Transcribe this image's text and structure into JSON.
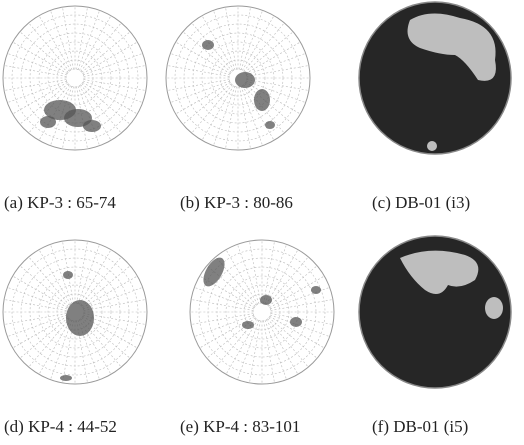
{
  "panels": [
    {
      "caption": "(a) KP-3 : 65-74"
    },
    {
      "caption": "(b) KP-3 : 80-86"
    },
    {
      "caption": "(c) DB-01 (i3)"
    },
    {
      "caption": "(d) KP-4 : 44-52"
    },
    {
      "caption": "(e) KP-4 : 83-101"
    },
    {
      "caption": "(f) DB-01 (i5)"
    }
  ]
}
